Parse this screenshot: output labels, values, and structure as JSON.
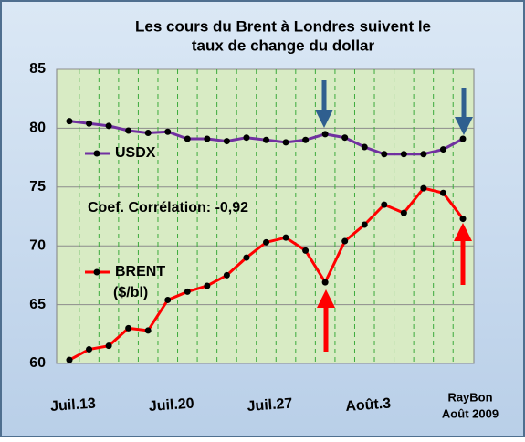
{
  "chart_data": {
    "type": "line",
    "title": [
      "Les cours du Brent à Londres suivent le",
      "taux de change du dollar"
    ],
    "categories": [
      "Juil.13",
      null,
      null,
      null,
      null,
      "Juil.20",
      null,
      null,
      null,
      null,
      "Juil.27",
      null,
      null,
      null,
      null,
      "Août.3",
      null,
      null,
      null,
      null,
      null
    ],
    "series": [
      {
        "name": "USDX",
        "color": "#7030a0",
        "values": [
          80.6,
          80.4,
          80.2,
          79.8,
          79.6,
          79.7,
          79.1,
          79.1,
          78.9,
          79.2,
          79.0,
          78.8,
          79.0,
          79.5,
          79.2,
          78.4,
          77.8,
          77.8,
          77.8,
          78.2,
          79.1
        ]
      },
      {
        "name": "BRENT",
        "color": "#ff0000",
        "values": [
          60.3,
          61.2,
          61.5,
          63.0,
          62.8,
          65.4,
          66.1,
          66.6,
          67.5,
          69.0,
          70.3,
          70.7,
          69.6,
          66.9,
          70.4,
          71.8,
          73.5,
          72.8,
          74.9,
          74.5,
          72.3
        ]
      }
    ],
    "unit_note": "($/bl)",
    "annotation": "Coef. Corrélation: -0,92",
    "credit": [
      "RayBon",
      "Août 2009"
    ],
    "ylim": [
      60,
      85
    ],
    "yticks": [
      60,
      65,
      70,
      75,
      80,
      85
    ],
    "grid": true
  }
}
